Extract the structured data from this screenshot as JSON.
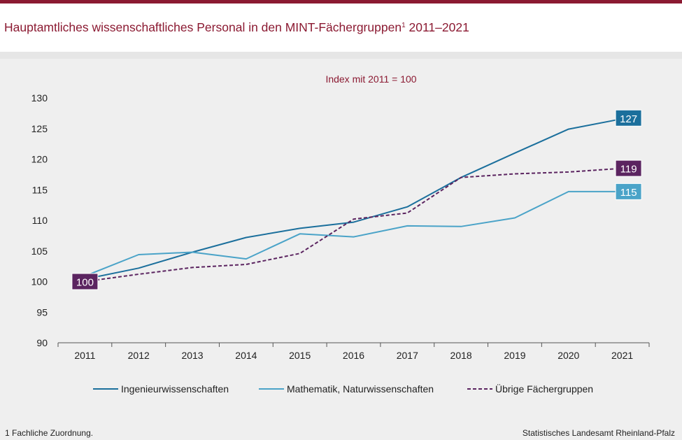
{
  "header": {
    "title": "Hauptamtliches wissenschaftliches Personal in den MINT-Fächergruppen",
    "footnote_marker": "1",
    "title_years": "2011–2021"
  },
  "colors": {
    "brand": "#8b1a32",
    "series_ing": "#1b6f9c",
    "series_math": "#4aa3c8",
    "series_other": "#5b2460"
  },
  "footer": {
    "footnote": "1 Fachliche Zuordnung.",
    "source": "Statistisches Landesamt Rheinland-Pfalz"
  },
  "chart_data": {
    "type": "line",
    "subtitle": "Index  mit 2011 = 100",
    "x": [
      "2011",
      "2012",
      "2013",
      "2014",
      "2015",
      "2016",
      "2017",
      "2018",
      "2019",
      "2020",
      "2021"
    ],
    "ylim": [
      90,
      130
    ],
    "yticks": [
      90,
      95,
      100,
      105,
      110,
      115,
      120,
      125,
      130
    ],
    "grid": false,
    "legend_position": "bottom",
    "series": [
      {
        "name": "Ingenieurwissenschaften",
        "style": "solid",
        "color": "#1b6f9c",
        "values": [
          100.4,
          102.2,
          104.8,
          107.2,
          108.7,
          109.7,
          112.2,
          117.0,
          121.0,
          124.9,
          126.6
        ],
        "end_label": "127"
      },
      {
        "name": "Mathematik, Naturwissenschaften",
        "style": "solid",
        "color": "#4aa3c8",
        "values": [
          100.9,
          104.4,
          104.8,
          103.7,
          107.8,
          107.3,
          109.1,
          109.0,
          110.4,
          114.7,
          114.7
        ],
        "end_label": "115"
      },
      {
        "name": "Übrige Fächergruppen",
        "style": "dashed",
        "color": "#5b2460",
        "values": [
          100.0,
          101.2,
          102.3,
          102.8,
          104.6,
          110.2,
          111.2,
          117.0,
          117.6,
          117.9,
          118.5
        ],
        "end_label": "119"
      }
    ],
    "start_label": "100"
  }
}
